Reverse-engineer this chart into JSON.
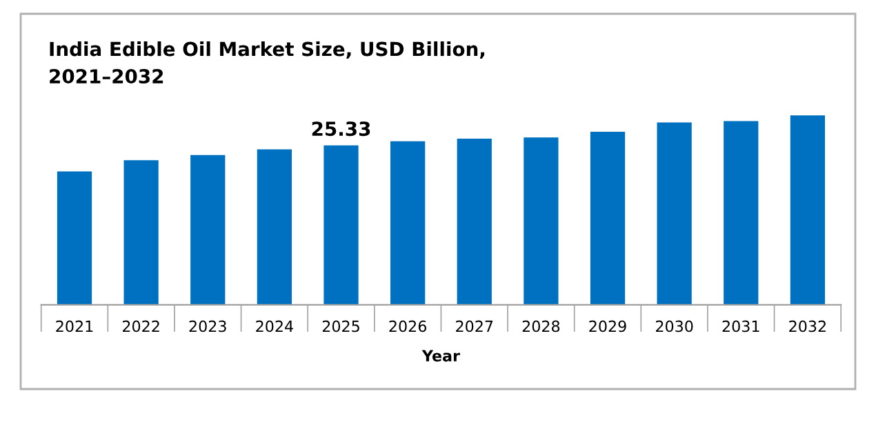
{
  "chart_data": {
    "type": "bar",
    "title": "India Edible Oil Market Size, USD Billion,\n2021–2032",
    "xlabel": "Year",
    "categories": [
      "2021",
      "2022",
      "2023",
      "2024",
      "2025",
      "2026",
      "2027",
      "2028",
      "2029",
      "2030",
      "2031",
      "2032"
    ],
    "values": [
      21.2,
      23.0,
      23.8,
      24.7,
      25.33,
      26.0,
      26.4,
      26.6,
      27.5,
      29.0,
      29.2,
      30.1
    ],
    "value_labels": [
      null,
      null,
      null,
      null,
      "25.33",
      null,
      null,
      null,
      null,
      null,
      null,
      null
    ],
    "color": "#0070c0",
    "tick_labels": "x",
    "grid": false,
    "legend": false
  }
}
